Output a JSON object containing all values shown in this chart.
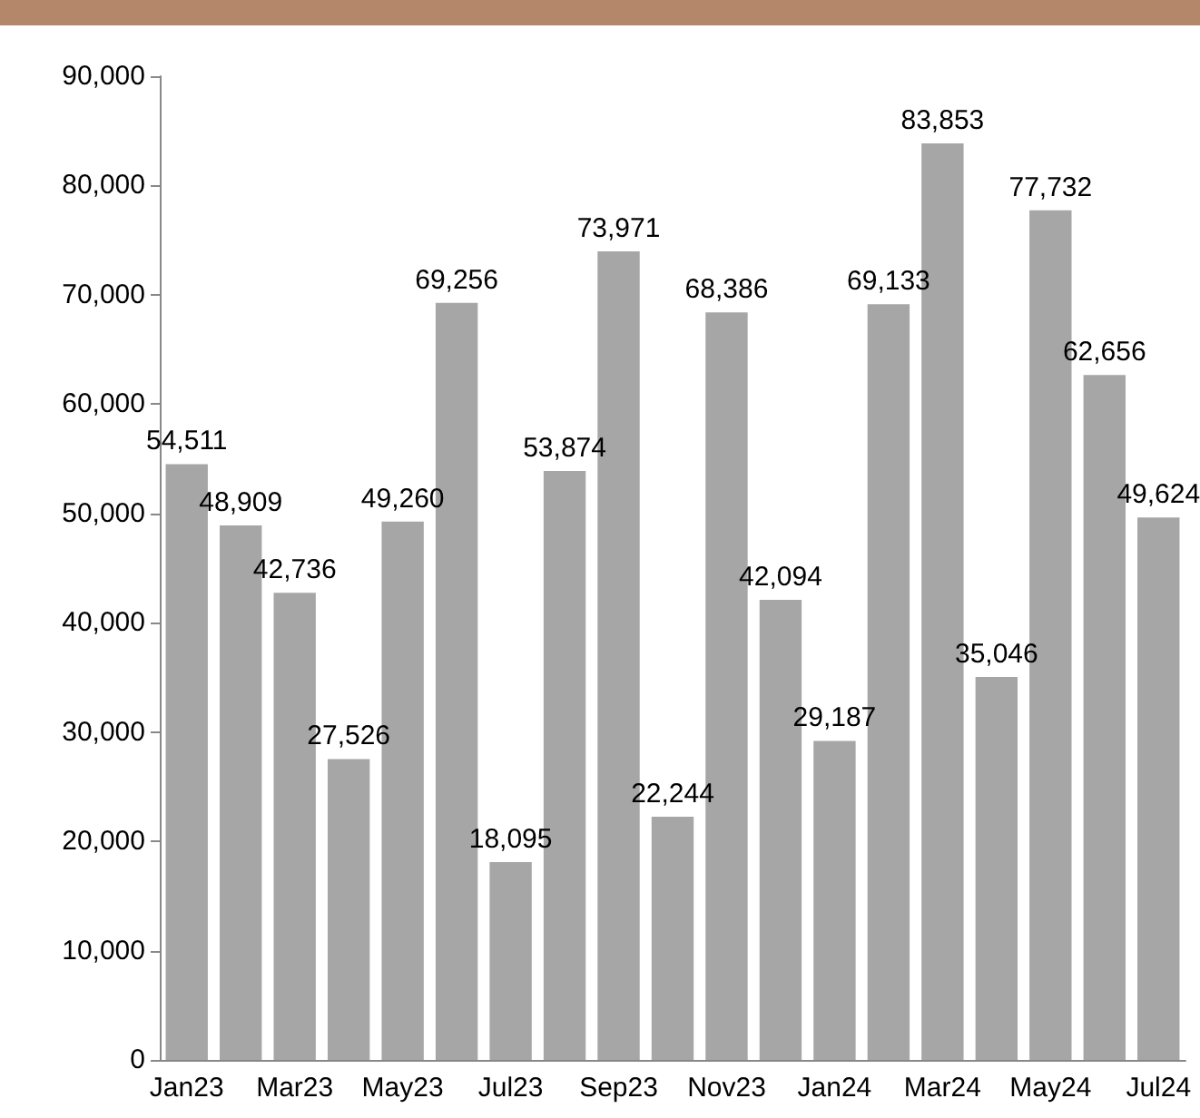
{
  "chart_data": {
    "type": "bar",
    "categories": [
      "Jan23",
      null,
      "Mar23",
      null,
      "May23",
      null,
      "Jul23",
      null,
      "Sep23",
      null,
      "Nov23",
      null,
      "Jan24",
      null,
      "Mar24",
      null,
      "May24",
      null,
      "Jul24"
    ],
    "values": [
      54511,
      48909,
      42736,
      27526,
      49260,
      69256,
      18095,
      53874,
      73971,
      22244,
      68386,
      42094,
      29187,
      69133,
      83853,
      35046,
      77732,
      62656,
      49624
    ],
    "value_labels": [
      "54,511",
      "48,909",
      "42,736",
      "27,526",
      "49,260",
      "69,256",
      "18,095",
      "53,874",
      "73,971",
      "22,244",
      "68,386",
      "42,094",
      "29,187",
      "69,133",
      "83,853",
      "35,046",
      "77,732",
      "62,656",
      "49,624"
    ],
    "color": "#a6a6a6",
    "ylim": [
      0,
      90000
    ],
    "yticks": [
      0,
      {
        "value": 10000,
        "label": "10,000"
      },
      {
        "value": 20000,
        "label": "20,000"
      },
      {
        "value": 30000,
        "label": "30,000"
      },
      {
        "value": 40000,
        "label": "40,000"
      },
      {
        "value": 50000,
        "label": "50,000"
      },
      {
        "value": 60000,
        "label": "60,000"
      },
      {
        "value": 70000,
        "label": "70,000"
      },
      {
        "value": 80000,
        "label": "80,000"
      },
      {
        "value": 90000,
        "label": "90,000"
      }
    ],
    "grid": false
  }
}
